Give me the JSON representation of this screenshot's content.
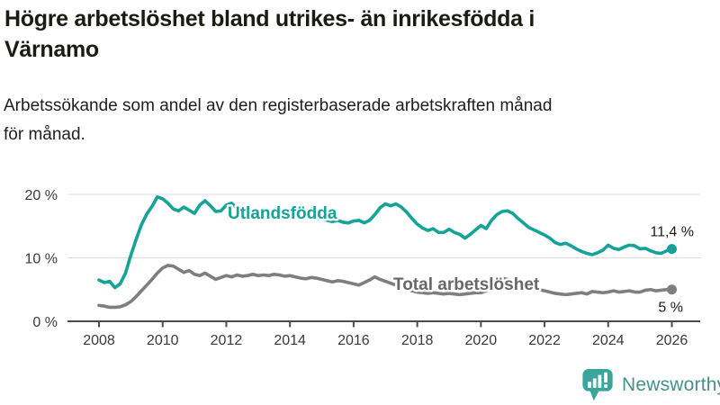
{
  "header": {
    "title_lines": [
      "Högre arbetslöshet bland utrikes- än inrikesfödda i",
      "Värnamo"
    ],
    "subtitle_lines": [
      "Arbetssökande som andel av den registerbaserade arbetskraften månad",
      "för månad."
    ]
  },
  "chart_data": {
    "type": "line",
    "title": "Högre arbetslöshet bland utrikes- än inrikesfödda i Värnamo",
    "subtitle": "Arbetssökande som andel av den registerbaserade arbetskraften månad för månad.",
    "x_axis": {
      "unit": "year",
      "range": [
        2007.6,
        2026.9
      ],
      "ticks": [
        2008,
        2010,
        2012,
        2014,
        2016,
        2018,
        2020,
        2022,
        2024,
        2026
      ]
    },
    "y_axis": {
      "unit": "%",
      "range": [
        0,
        21.5
      ],
      "ticks": [
        {
          "value": 20,
          "label": "20 %"
        },
        {
          "value": 10,
          "label": "10 %"
        },
        {
          "value": 0,
          "label": "0 %"
        }
      ],
      "gridlines": [
        20,
        10
      ],
      "grid": true
    },
    "legend_position": "inline-labels",
    "series": [
      {
        "name": "Utlandsfödda",
        "color": "#16a298",
        "end_label": "11,4 %",
        "end_value": 11.4,
        "start_year": 2008,
        "interval_months": 2,
        "values": [
          6.5,
          6.1,
          6.3,
          5.3,
          5.9,
          7.6,
          10.4,
          12.9,
          15.2,
          16.9,
          18.1,
          19.6,
          19.3,
          18.6,
          17.7,
          17.4,
          18.0,
          17.5,
          17.0,
          18.3,
          19.0,
          18.2,
          17.3,
          17.4,
          18.3,
          18.6,
          17.8,
          18.0,
          17.6,
          17.4,
          17.6,
          17.3,
          17.2,
          17.4,
          17.0,
          16.9,
          17.0,
          16.7,
          16.4,
          16.6,
          16.2,
          16.1,
          16.2,
          15.9,
          15.7,
          15.9,
          15.6,
          15.5,
          15.8,
          15.9,
          15.5,
          15.9,
          16.8,
          17.9,
          18.5,
          18.2,
          18.5,
          18.0,
          17.2,
          16.2,
          15.3,
          14.7,
          14.3,
          14.6,
          14.0,
          14.0,
          14.5,
          14.0,
          13.7,
          13.1,
          13.7,
          14.4,
          15.1,
          14.6,
          15.9,
          16.8,
          17.3,
          17.4,
          17.0,
          16.2,
          15.5,
          14.8,
          14.4,
          14.0,
          13.6,
          13.1,
          12.4,
          12.1,
          12.3,
          11.9,
          11.4,
          11.0,
          10.7,
          10.5,
          10.8,
          11.2,
          12.0,
          11.5,
          11.3,
          11.7,
          12.0,
          11.9,
          11.4,
          11.5,
          11.1,
          10.8,
          10.7,
          11.1,
          11.4
        ]
      },
      {
        "name": "Total arbetslöshet",
        "color": "#7d7d82",
        "label_color": "#66666b",
        "end_label": "5 %",
        "end_value": 5.0,
        "start_year": 2008,
        "interval_months": 2,
        "values": [
          2.5,
          2.4,
          2.2,
          2.2,
          2.3,
          2.6,
          3.1,
          3.9,
          4.8,
          5.7,
          6.6,
          7.6,
          8.4,
          8.8,
          8.7,
          8.2,
          7.7,
          8.0,
          7.4,
          7.2,
          7.6,
          7.1,
          6.6,
          6.9,
          7.2,
          7.0,
          7.3,
          7.1,
          7.2,
          7.4,
          7.2,
          7.3,
          7.2,
          7.4,
          7.3,
          7.1,
          7.2,
          7.0,
          6.8,
          6.7,
          6.9,
          6.8,
          6.6,
          6.4,
          6.2,
          6.4,
          6.3,
          6.1,
          5.9,
          5.7,
          6.1,
          6.5,
          7.0,
          6.6,
          6.3,
          6.0,
          5.7,
          5.4,
          5.1,
          4.8,
          4.6,
          4.5,
          4.4,
          4.5,
          4.4,
          4.3,
          4.4,
          4.3,
          4.2,
          4.3,
          4.4,
          4.5,
          4.5,
          4.8,
          5.9,
          6.6,
          6.8,
          6.6,
          6.4,
          6.1,
          5.8,
          5.5,
          5.2,
          5.0,
          4.8,
          4.6,
          4.4,
          4.3,
          4.2,
          4.3,
          4.4,
          4.5,
          4.3,
          4.7,
          4.6,
          4.5,
          4.6,
          4.8,
          4.6,
          4.7,
          4.8,
          4.6,
          4.6,
          4.9,
          5.0,
          4.8,
          4.9,
          5.0,
          5.0
        ]
      }
    ]
  },
  "branding": {
    "logo_text": "Newsworthy",
    "logo_icon": "bar-chart-speech-bubble-icon",
    "icon_color": "#3ba49b",
    "text_color": "#43918b"
  }
}
